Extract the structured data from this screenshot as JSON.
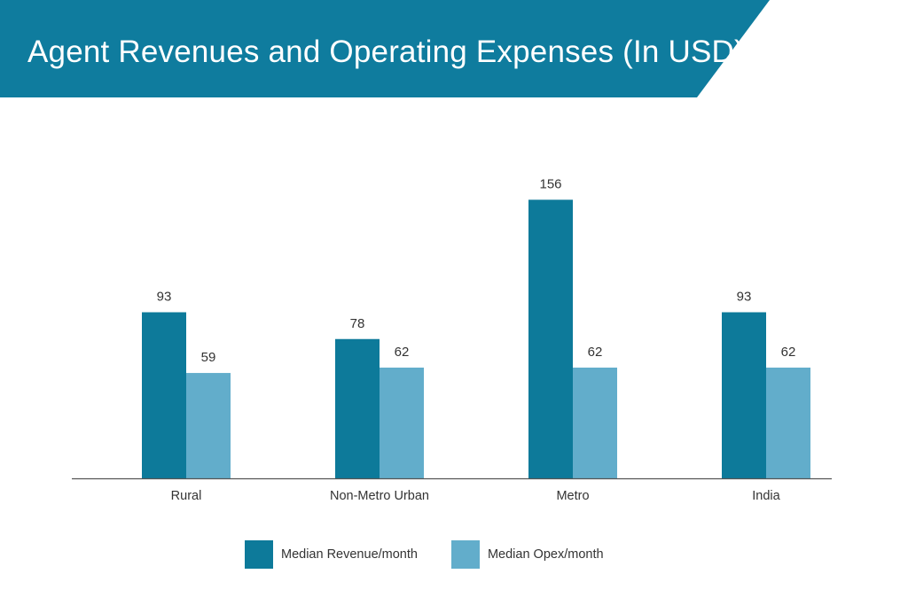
{
  "title": "Agent Revenues and Operating Expenses (In USD)",
  "colors": {
    "banner": "#0f7c9e",
    "revenue": "#0d7a9a",
    "opex": "#62adcb",
    "axis": "#555555",
    "text": "#333333"
  },
  "legend": [
    {
      "label": "Median Revenue/month",
      "color": "#0d7a9a"
    },
    {
      "label": "Median Opex/month",
      "color": "#62adcb"
    }
  ],
  "chart_data": {
    "type": "bar",
    "title": "Agent Revenues and Operating Expenses (In USD)",
    "categories": [
      "Rural",
      "Non-Metro Urban",
      "Metro",
      "India"
    ],
    "series": [
      {
        "name": "Median Revenue/month",
        "values": [
          93,
          78,
          156,
          93
        ]
      },
      {
        "name": "Median Opex/month",
        "values": [
          59,
          62,
          62,
          62
        ]
      }
    ],
    "xlabel": "",
    "ylabel": "",
    "ylim": [
      0,
      160
    ],
    "grid": false,
    "data_labels": true,
    "legend_position": "bottom"
  }
}
